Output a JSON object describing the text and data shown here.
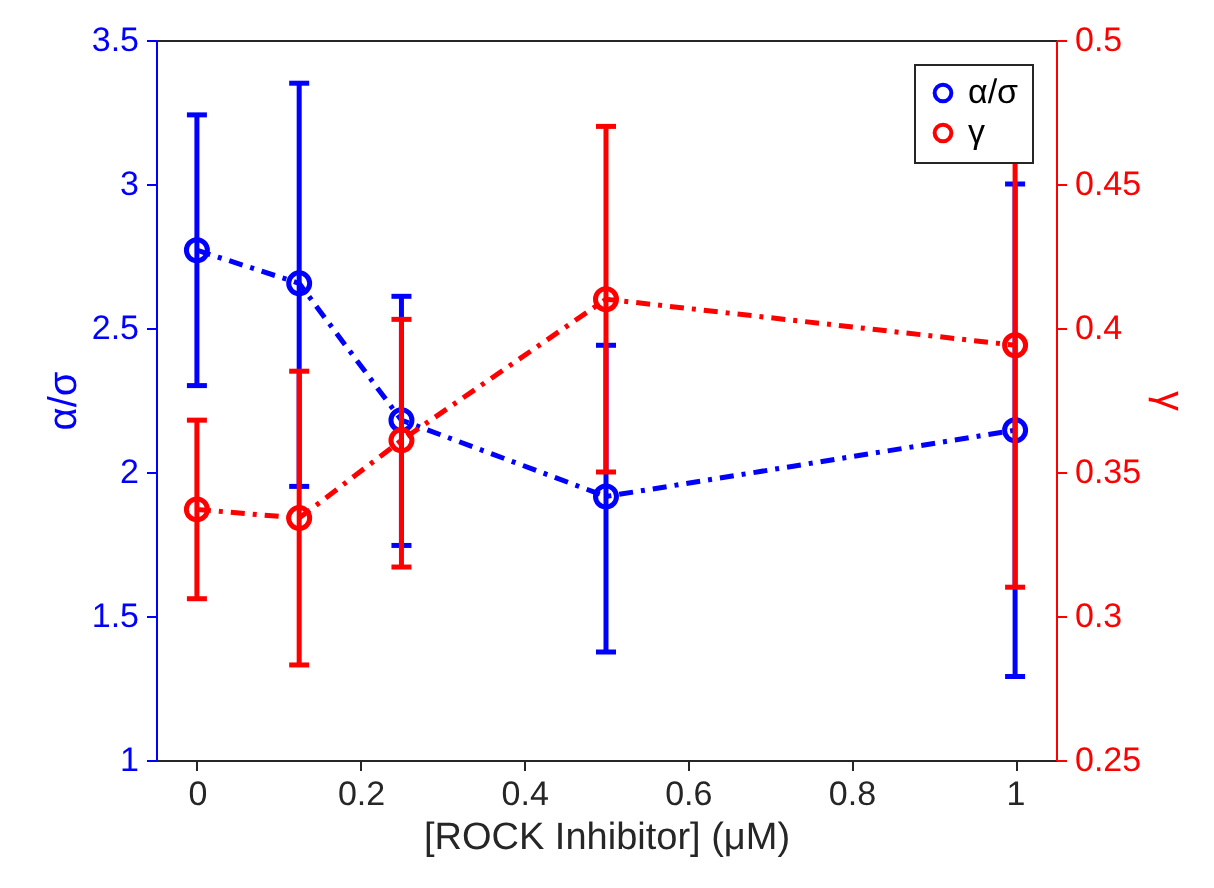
{
  "chart_data": {
    "type": "line",
    "xlabel": "[ROCK Inhibitor] (μM)",
    "ylabel": "α/σ",
    "y2label": "γ",
    "x": [
      0,
      0.125,
      0.25,
      0.5,
      1
    ],
    "xlim": [
      -0.05,
      1.05
    ],
    "xticks": [
      0,
      0.2,
      0.4,
      0.6,
      0.8,
      1
    ],
    "ylim": [
      1,
      3.5
    ],
    "yticks": [
      1,
      1.5,
      2,
      2.5,
      3,
      3.5
    ],
    "y2lim": [
      0.25,
      0.5
    ],
    "y2ticks": [
      0.25,
      0.3,
      0.35,
      0.4,
      0.45,
      0.5
    ],
    "series": [
      {
        "name": "α/σ",
        "color": "#0000ff",
        "values": [
          2.77,
          2.655,
          2.18,
          1.915,
          2.145
        ],
        "errors": [
          [
            2.3,
            3.24
          ],
          [
            1.95,
            3.35
          ],
          [
            1.745,
            2.61
          ],
          [
            1.375,
            2.44
          ],
          [
            1.29,
            3.0
          ]
        ]
      },
      {
        "name": "γ",
        "color": "#ff0000",
        "axis": "y2",
        "values": [
          0.337,
          0.334,
          0.361,
          0.41,
          0.394
        ],
        "errors": [
          [
            0.306,
            0.368
          ],
          [
            0.283,
            0.385
          ],
          [
            0.317,
            0.403
          ],
          [
            0.35,
            0.47
          ],
          [
            0.31,
            0.478
          ]
        ]
      }
    ],
    "marker": "circle",
    "line_style": "dashed",
    "legend": "top right",
    "grid": false
  }
}
